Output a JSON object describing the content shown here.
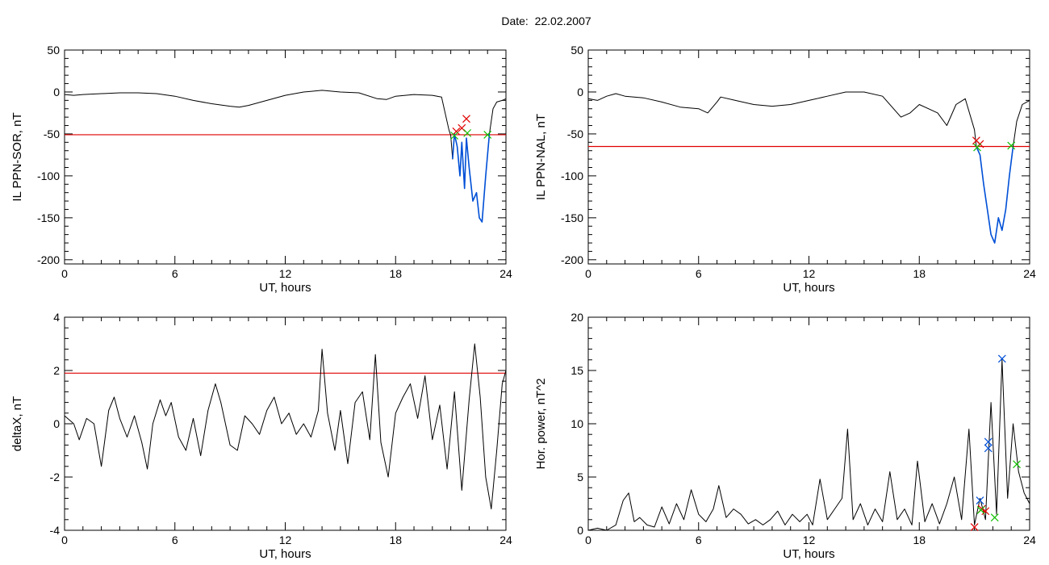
{
  "page": {
    "title": "Date:  22.02.2007"
  },
  "colors": {
    "trace": "#000000",
    "threshold": "#e00000",
    "highlight": "#0050d8",
    "marker_red": "#e00000",
    "marker_green": "#10c000",
    "marker_blue": "#0050d8"
  },
  "chart_data": [
    {
      "type": "line",
      "id": "top-left",
      "ylabel": "IL PPN-SOR, nT",
      "xlabel": "UT, hours",
      "xlim": [
        0,
        24
      ],
      "ylim": [
        -205,
        50
      ],
      "xticks": [
        0,
        6,
        12,
        18,
        24
      ],
      "yticks": [
        50,
        0,
        -50,
        -100,
        -150,
        -200
      ],
      "threshold": -51,
      "highlight_range": [
        21.1,
        23.1
      ],
      "x": [
        0,
        0.5,
        1,
        2,
        3,
        4,
        5,
        6,
        7,
        8,
        9,
        9.5,
        10,
        11,
        12,
        13,
        14,
        15,
        16,
        17,
        17.5,
        18,
        19,
        20,
        20.5,
        20.9,
        21.0,
        21.1,
        21.2,
        21.35,
        21.5,
        21.6,
        21.75,
        21.85,
        22.0,
        22.2,
        22.4,
        22.55,
        22.7,
        22.9,
        23.1,
        23.3,
        23.5,
        23.8,
        24
      ],
      "y": [
        -3,
        -4,
        -3,
        -2,
        -1,
        -1,
        -2,
        -5,
        -10,
        -14,
        -17,
        -18,
        -16,
        -10,
        -4,
        0,
        2,
        0,
        -1,
        -8,
        -9,
        -5,
        -3,
        -4,
        -6,
        -45,
        -52,
        -80,
        -50,
        -65,
        -100,
        -60,
        -115,
        -55,
        -90,
        -130,
        -120,
        -150,
        -155,
        -100,
        -50,
        -20,
        -12,
        -10,
        -8
      ],
      "markers": [
        {
          "x": 21.3,
          "y": -47,
          "color": "red"
        },
        {
          "x": 21.6,
          "y": -43,
          "color": "red"
        },
        {
          "x": 21.85,
          "y": -32,
          "color": "red"
        },
        {
          "x": 21.2,
          "y": -52,
          "color": "green"
        },
        {
          "x": 21.9,
          "y": -49,
          "color": "green"
        },
        {
          "x": 23.0,
          "y": -51,
          "color": "green"
        }
      ]
    },
    {
      "type": "line",
      "id": "top-right",
      "ylabel": "IL PPN-NAL, nT",
      "xlabel": "UT, hours",
      "xlim": [
        0,
        24
      ],
      "ylim": [
        -205,
        50
      ],
      "xticks": [
        0,
        6,
        12,
        18,
        24
      ],
      "yticks": [
        50,
        0,
        -50,
        -100,
        -150,
        -200
      ],
      "threshold": -65,
      "highlight_range": [
        21.1,
        23.1
      ],
      "x": [
        0,
        0.5,
        1,
        1.5,
        2,
        3,
        4,
        5,
        6,
        6.5,
        7,
        7.2,
        8,
        9,
        10,
        11,
        12,
        13,
        14,
        15,
        16,
        17,
        17.5,
        18,
        19,
        19.5,
        20,
        20.5,
        21.0,
        21.1,
        21.3,
        21.5,
        21.7,
        21.9,
        22.1,
        22.3,
        22.5,
        22.7,
        22.9,
        23.1,
        23.3,
        23.6,
        24
      ],
      "y": [
        -8,
        -10,
        -5,
        -2,
        -5,
        -7,
        -12,
        -18,
        -20,
        -25,
        -12,
        -6,
        -10,
        -15,
        -17,
        -15,
        -10,
        -5,
        0,
        0,
        -5,
        -30,
        -25,
        -15,
        -25,
        -40,
        -15,
        -8,
        -45,
        -65,
        -75,
        -110,
        -140,
        -170,
        -180,
        -150,
        -165,
        -140,
        -100,
        -65,
        -35,
        -15,
        -10
      ],
      "markers": [
        {
          "x": 21.1,
          "y": -58,
          "color": "red"
        },
        {
          "x": 21.3,
          "y": -62,
          "color": "red"
        },
        {
          "x": 21.15,
          "y": -66,
          "color": "green"
        },
        {
          "x": 23.0,
          "y": -64,
          "color": "green"
        }
      ]
    },
    {
      "type": "line",
      "id": "bottom-left",
      "ylabel": "deltaX, nT",
      "xlabel": "UT, hours",
      "xlim": [
        0,
        24
      ],
      "ylim": [
        -4,
        4
      ],
      "xticks": [
        0,
        6,
        12,
        18,
        24
      ],
      "yticks": [
        4,
        2,
        0,
        -2,
        -4
      ],
      "threshold": 1.9,
      "x": [
        0,
        0.5,
        0.8,
        1.2,
        1.6,
        2.0,
        2.4,
        2.7,
        3.0,
        3.4,
        3.8,
        4.2,
        4.5,
        4.8,
        5.2,
        5.5,
        5.8,
        6.2,
        6.6,
        7.0,
        7.4,
        7.8,
        8.2,
        8.5,
        9.0,
        9.4,
        9.8,
        10.2,
        10.6,
        11.0,
        11.4,
        11.8,
        12.2,
        12.6,
        13.0,
        13.4,
        13.8,
        14.0,
        14.3,
        14.7,
        15.0,
        15.4,
        15.8,
        16.2,
        16.6,
        16.9,
        17.2,
        17.6,
        18.0,
        18.4,
        18.8,
        19.2,
        19.6,
        20.0,
        20.4,
        20.8,
        21.2,
        21.6,
        22.0,
        22.3,
        22.6,
        22.9,
        23.2,
        23.5,
        23.8,
        24
      ],
      "y": [
        0.3,
        0,
        -0.6,
        0.2,
        0,
        -1.6,
        0.5,
        1.0,
        0.2,
        -0.5,
        0.3,
        -0.7,
        -1.7,
        0,
        0.9,
        0.3,
        0.8,
        -0.5,
        -1.0,
        0.2,
        -1.2,
        0.5,
        1.5,
        0.8,
        -0.8,
        -1.0,
        0.3,
        0,
        -0.4,
        0.5,
        1.0,
        0,
        0.4,
        -0.4,
        0,
        -0.5,
        0.5,
        2.8,
        0.4,
        -1.0,
        0.5,
        -1.5,
        0.8,
        1.2,
        -0.6,
        2.6,
        -0.7,
        -2.0,
        0.4,
        1.0,
        1.5,
        0.2,
        1.8,
        -0.6,
        0.7,
        -1.7,
        1.2,
        -2.5,
        0.9,
        3.0,
        1.0,
        -2.0,
        -3.2,
        -1.0,
        1.5,
        2.0
      ]
    },
    {
      "type": "line",
      "id": "bottom-right",
      "ylabel": "Hor. power, nT^2",
      "xlabel": "UT, hours",
      "xlim": [
        0,
        24
      ],
      "ylim": [
        0,
        20
      ],
      "xticks": [
        0,
        6,
        12,
        18,
        24
      ],
      "yticks": [
        20,
        15,
        10,
        5,
        0
      ],
      "x": [
        0,
        0.5,
        1.0,
        1.5,
        1.9,
        2.2,
        2.5,
        2.8,
        3.2,
        3.6,
        4.0,
        4.4,
        4.8,
        5.2,
        5.6,
        6.0,
        6.4,
        6.8,
        7.1,
        7.5,
        7.9,
        8.3,
        8.7,
        9.1,
        9.5,
        9.9,
        10.3,
        10.7,
        11.1,
        11.5,
        11.9,
        12.2,
        12.6,
        13.0,
        13.4,
        13.8,
        14.1,
        14.4,
        14.8,
        15.2,
        15.6,
        16.0,
        16.4,
        16.8,
        17.2,
        17.6,
        17.9,
        18.3,
        18.7,
        19.1,
        19.5,
        19.9,
        20.3,
        20.7,
        21.0,
        21.3,
        21.6,
        21.9,
        22.2,
        22.5,
        22.8,
        23.1,
        23.4,
        23.7,
        24
      ],
      "y": [
        0,
        0.2,
        0,
        0.5,
        2.8,
        3.5,
        0.8,
        1.2,
        0.5,
        0.3,
        2.2,
        0.6,
        2.5,
        1.0,
        3.8,
        1.5,
        0.8,
        2.0,
        4.2,
        1.2,
        2.0,
        1.5,
        0.6,
        1.0,
        0.5,
        1.0,
        1.8,
        0.5,
        1.5,
        0.8,
        1.5,
        0.5,
        4.8,
        1.0,
        2.0,
        3.0,
        9.5,
        1.0,
        2.5,
        0.5,
        2.0,
        0.8,
        5.5,
        1.0,
        2.0,
        0.5,
        6.5,
        0.8,
        2.5,
        0.6,
        2.5,
        5.0,
        1.0,
        9.5,
        0.5,
        3.0,
        1.0,
        12.0,
        1.5,
        16.0,
        3.0,
        10.0,
        5.5,
        3.5,
        2.5
      ],
      "markers": [
        {
          "x": 22.5,
          "y": 16.1,
          "color": "blue"
        },
        {
          "x": 21.75,
          "y": 8.3,
          "color": "blue"
        },
        {
          "x": 21.75,
          "y": 7.7,
          "color": "blue"
        },
        {
          "x": 21.3,
          "y": 2.8,
          "color": "blue"
        },
        {
          "x": 21.0,
          "y": 0.3,
          "color": "red"
        },
        {
          "x": 21.4,
          "y": 2.0,
          "color": "red"
        },
        {
          "x": 21.6,
          "y": 1.8,
          "color": "red"
        },
        {
          "x": 21.35,
          "y": 1.9,
          "color": "green"
        },
        {
          "x": 22.1,
          "y": 1.2,
          "color": "green"
        },
        {
          "x": 23.3,
          "y": 6.2,
          "color": "green"
        }
      ]
    }
  ]
}
